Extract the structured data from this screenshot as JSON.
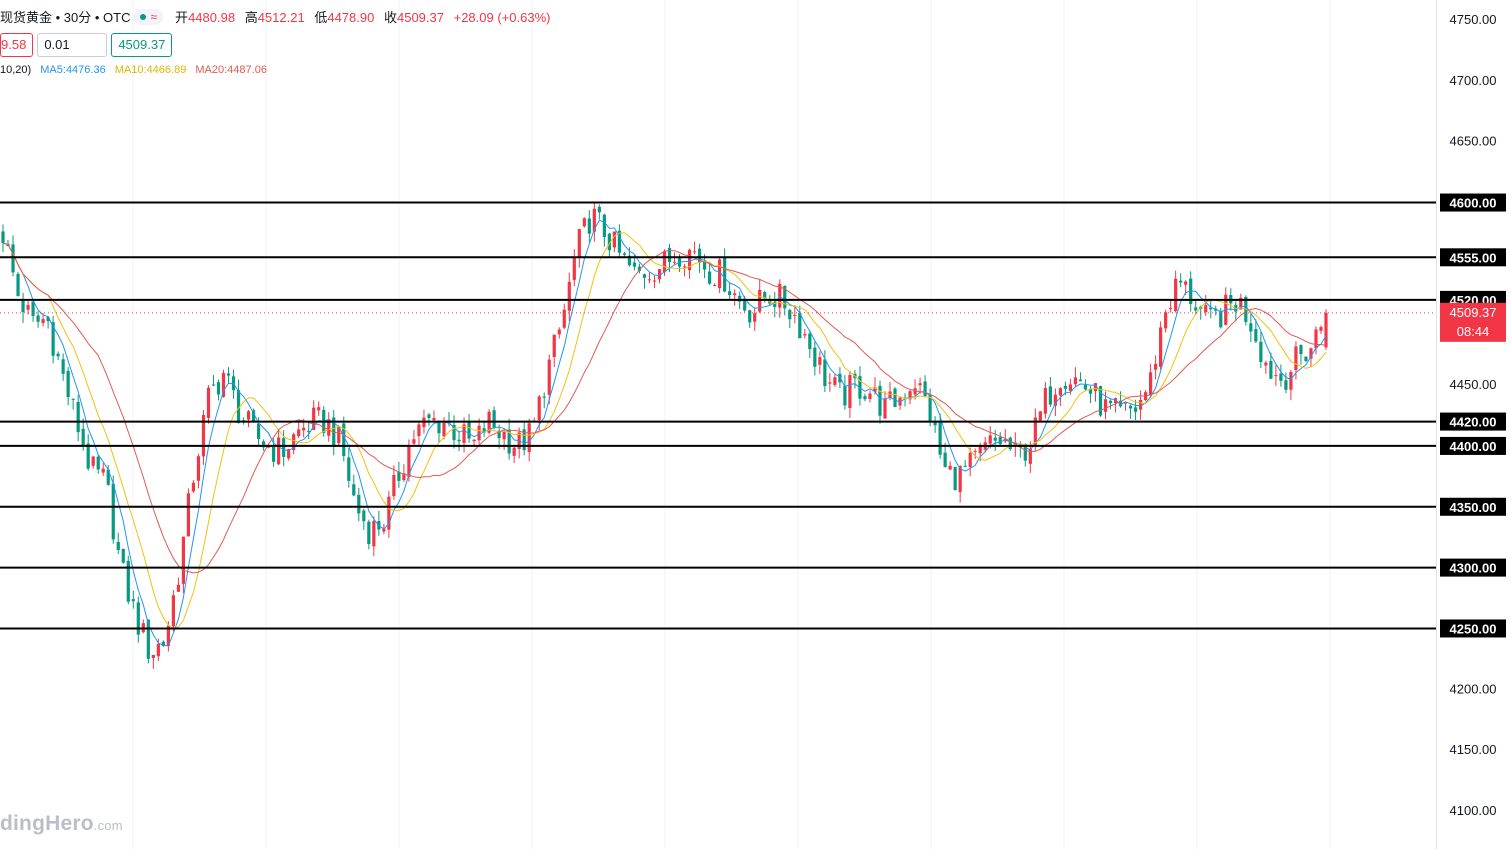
{
  "header": {
    "symbol": "现货黄金 • 30分 • OTC",
    "open_label": "开",
    "open": "4480.98",
    "high_label": "高",
    "high": "4512.21",
    "low_label": "低",
    "low": "4478.90",
    "close_label": "收",
    "close": "4509.37",
    "change": "+28.09 (+0.63%)"
  },
  "trade": {
    "sell_price": "9.58",
    "quantity": "0.01",
    "buy_price": "4509.37"
  },
  "indicators": {
    "params": "10,20)",
    "ma5": "MA5:4476.36",
    "ma10": "MA10:4466.89",
    "ma20": "MA20:4487.06"
  },
  "watermark": {
    "text": "dingHero",
    "suffix": ".com"
  },
  "price_axis": {
    "ticks": [
      "4750.00",
      "4700.00",
      "4650.00",
      "4450.00",
      "4200.00",
      "4150.00",
      "4100.00"
    ],
    "tick_values": [
      4750,
      4700,
      4650,
      4450,
      4200,
      4150,
      4100
    ],
    "current_price": "4509.37",
    "countdown": "08:44"
  },
  "colors": {
    "up": "#f23645",
    "down": "#089981",
    "ma5": "#2196f3",
    "ma10": "#f2c012",
    "ma20": "#e05a55",
    "level_line": "#000000"
  },
  "chart_data": {
    "type": "candlestick",
    "title": "现货黄金 • 30分 • OTC",
    "ylim": [
      4090,
      4760
    ],
    "horizontal_levels": [
      {
        "value": 4600,
        "label": "4600.00"
      },
      {
        "value": 4555,
        "label": "4555.00"
      },
      {
        "value": 4520,
        "label": "4520.00"
      },
      {
        "value": 4420,
        "label": "4420.00"
      },
      {
        "value": 4400,
        "label": "4400.00"
      },
      {
        "value": 4350,
        "label": "4350.00"
      },
      {
        "value": 4300,
        "label": "4300.00"
      },
      {
        "value": 4250,
        "label": "4250.00"
      }
    ],
    "close_path": [
      4575,
      4525,
      4500,
      4505,
      4460,
      4420,
      4380,
      4370,
      4300,
      4260,
      4230,
      4240,
      4300,
      4380,
      4440,
      4460,
      4430,
      4410,
      4400,
      4395,
      4410,
      4420,
      4420,
      4400,
      4350,
      4330,
      4340,
      4380,
      4410,
      4420,
      4420,
      4410,
      4400,
      4420,
      4410,
      4400,
      4410,
      4460,
      4500,
      4560,
      4590,
      4575,
      4555,
      4540,
      4545,
      4550,
      4560,
      4560,
      4545,
      4540,
      4520,
      4510,
      4525,
      4520,
      4505,
      4480,
      4455,
      4440,
      4450,
      4445,
      4430,
      4440,
      4455,
      4430,
      4380,
      4375,
      4385,
      4400,
      4405,
      4390,
      4405,
      4440,
      4460,
      4455,
      4445,
      4430,
      4425,
      4430,
      4450,
      4510,
      4535,
      4520,
      4500,
      4510,
      4520,
      4500,
      4465,
      4455,
      4470,
      4482,
      4509.37
    ],
    "ma5": "MA5:4476.36",
    "ma10": "MA10:4466.89",
    "ma20": "MA20:4487.06"
  }
}
